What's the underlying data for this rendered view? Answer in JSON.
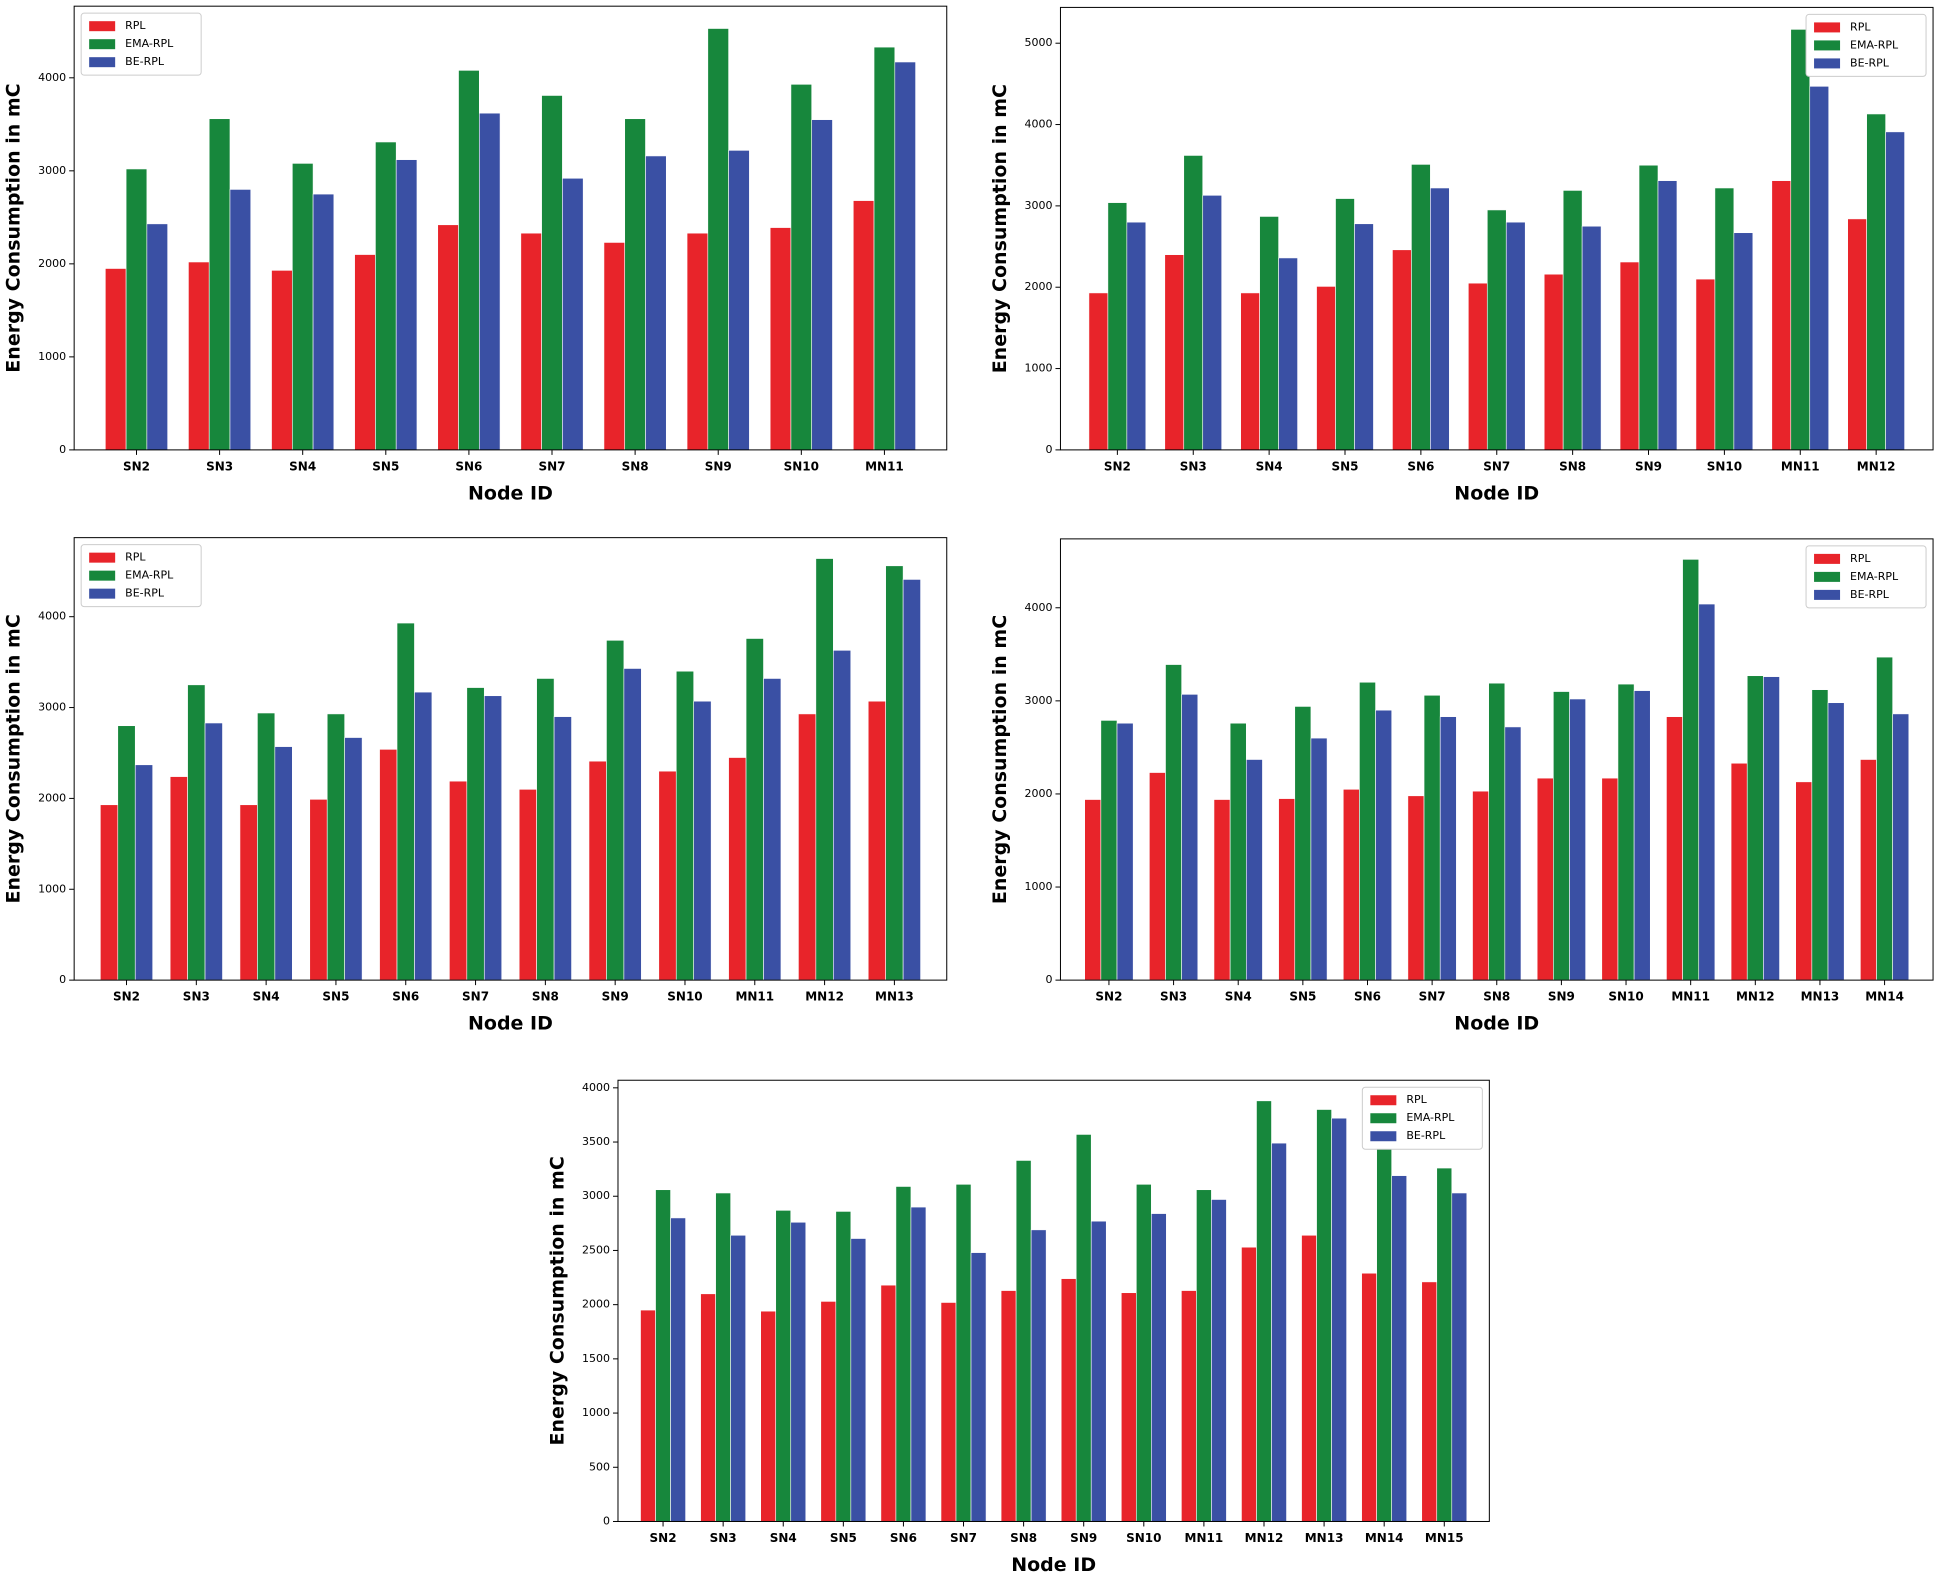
{
  "chart_data": [
    {
      "type": "bar",
      "x_label": "Node ID",
      "y_label": "Energy Consumption in mC",
      "legend": "upper left",
      "categories": [
        "SN2",
        "SN3",
        "SN4",
        "SN5",
        "SN6",
        "SN7",
        "SN8",
        "SN9",
        "SN10",
        "MN11"
      ],
      "series": [
        {
          "name": "RPL",
          "color": "#e8242a",
          "values": [
            1950,
            2020,
            1930,
            2100,
            2420,
            2330,
            2230,
            2330,
            2390,
            2680
          ]
        },
        {
          "name": "EMA-RPL",
          "color": "#17873c",
          "values": [
            3020,
            3560,
            3080,
            3310,
            4080,
            3810,
            3560,
            4530,
            3930,
            4330
          ]
        },
        {
          "name": "BE-RPL",
          "color": "#3a50a4",
          "values": [
            2430,
            2800,
            2750,
            3120,
            3620,
            2920,
            3160,
            3220,
            3550,
            4170
          ]
        }
      ],
      "ylim": [
        0,
        4770
      ],
      "yticks": [
        0,
        1000,
        2000,
        3000,
        4000
      ]
    },
    {
      "type": "bar",
      "x_label": "Node ID",
      "y_label": "Energy Consumption in mC",
      "legend": "upper right",
      "categories": [
        "SN2",
        "SN3",
        "SN4",
        "SN5",
        "SN6",
        "SN7",
        "SN8",
        "SN9",
        "SN10",
        "MN11",
        "MN12"
      ],
      "series": [
        {
          "name": "RPL",
          "color": "#e8242a",
          "values": [
            1930,
            2400,
            1930,
            2010,
            2460,
            2050,
            2160,
            2310,
            2100,
            3310,
            2840
          ]
        },
        {
          "name": "EMA-RPL",
          "color": "#17873c",
          "values": [
            3040,
            3620,
            2870,
            3090,
            3510,
            2950,
            3190,
            3500,
            3220,
            5170,
            4130
          ]
        },
        {
          "name": "BE-RPL",
          "color": "#3a50a4",
          "values": [
            2800,
            3130,
            2360,
            2780,
            3220,
            2800,
            2750,
            3310,
            2670,
            4470,
            3910
          ]
        }
      ],
      "ylim": [
        0,
        5440
      ],
      "yticks": [
        0,
        1000,
        2000,
        3000,
        4000,
        5000
      ]
    },
    {
      "type": "bar",
      "x_label": "Node ID",
      "y_label": "Energy Consumption in mC",
      "legend": "upper left",
      "categories": [
        "SN2",
        "SN3",
        "SN4",
        "SN5",
        "SN6",
        "SN7",
        "SN8",
        "SN9",
        "SN10",
        "MN11",
        "MN12",
        "MN13"
      ],
      "series": [
        {
          "name": "RPL",
          "color": "#e8242a",
          "values": [
            1930,
            2240,
            1930,
            1990,
            2540,
            2190,
            2100,
            2410,
            2300,
            2450,
            2930,
            3070
          ]
        },
        {
          "name": "EMA-RPL",
          "color": "#17873c",
          "values": [
            2800,
            3250,
            2940,
            2930,
            3930,
            3220,
            3320,
            3740,
            3400,
            3760,
            4640,
            4560
          ]
        },
        {
          "name": "BE-RPL",
          "color": "#3a50a4",
          "values": [
            2370,
            2830,
            2570,
            2670,
            3170,
            3130,
            2900,
            3430,
            3070,
            3320,
            3630,
            4410
          ]
        }
      ],
      "ylim": [
        0,
        4870
      ],
      "yticks": [
        0,
        1000,
        2000,
        3000,
        4000
      ]
    },
    {
      "type": "bar",
      "x_label": "Node ID",
      "y_label": "Energy Consumption in mC",
      "legend": "upper right",
      "categories": [
        "SN2",
        "SN3",
        "SN4",
        "SN5",
        "SN6",
        "SN7",
        "SN8",
        "SN9",
        "SN10",
        "MN11",
        "MN12",
        "MN13",
        "MN14"
      ],
      "series": [
        {
          "name": "RPL",
          "color": "#e8242a",
          "values": [
            1940,
            2230,
            1940,
            1950,
            2050,
            1980,
            2030,
            2170,
            2170,
            2830,
            2330,
            2130,
            2370
          ]
        },
        {
          "name": "EMA-RPL",
          "color": "#17873c",
          "values": [
            2790,
            3390,
            2760,
            2940,
            3200,
            3060,
            3190,
            3100,
            3180,
            4520,
            3270,
            3120,
            3470
          ]
        },
        {
          "name": "BE-RPL",
          "color": "#3a50a4",
          "values": [
            2760,
            3070,
            2370,
            2600,
            2900,
            2830,
            2720,
            3020,
            3110,
            4040,
            3260,
            2980,
            2860
          ]
        }
      ],
      "ylim": [
        0,
        4740
      ],
      "yticks": [
        0,
        1000,
        2000,
        3000,
        4000
      ]
    },
    {
      "type": "bar",
      "x_label": "Node ID",
      "y_label": "Energy Consumption in mC",
      "legend": "upper right",
      "categories": [
        "SN2",
        "SN3",
        "SN4",
        "SN5",
        "SN6",
        "SN7",
        "SN8",
        "SN9",
        "SN10",
        "MN11",
        "MN12",
        "MN13",
        "MN14",
        "MN15"
      ],
      "series": [
        {
          "name": "RPL",
          "color": "#e8242a",
          "values": [
            1950,
            2100,
            1940,
            2030,
            2180,
            2020,
            2130,
            2240,
            2110,
            2130,
            2530,
            2640,
            2290,
            2210
          ]
        },
        {
          "name": "EMA-RPL",
          "color": "#17873c",
          "values": [
            3060,
            3030,
            2870,
            2860,
            3090,
            3110,
            3330,
            3570,
            3110,
            3060,
            3880,
            3800,
            3530,
            3260
          ]
        },
        {
          "name": "BE-RPL",
          "color": "#3a50a4",
          "values": [
            2800,
            2640,
            2760,
            2610,
            2900,
            2480,
            2690,
            2770,
            2840,
            2970,
            3490,
            3720,
            3190,
            3030
          ]
        }
      ],
      "ylim": [
        0,
        4070
      ],
      "yticks": [
        0,
        500,
        1000,
        1500,
        2000,
        2500,
        3000,
        3500,
        4000
      ]
    }
  ]
}
